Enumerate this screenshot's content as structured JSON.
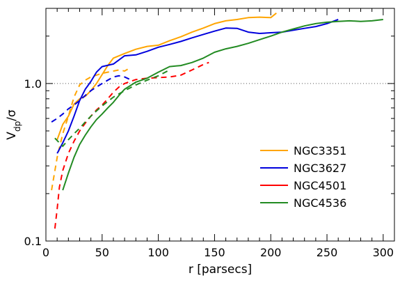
{
  "chart_data": {
    "type": "line",
    "xlabel": "r [parsecs]",
    "ylabel": {
      "main": "V",
      "sub": "dp",
      "tail": "/σ"
    },
    "xlim": [
      0,
      310
    ],
    "ylim": [
      0.1,
      3.0
    ],
    "yscale": "log",
    "x_ticks": [
      0,
      50,
      100,
      150,
      200,
      250,
      300
    ],
    "x_tick_labels": [
      "0",
      "50",
      "100",
      "150",
      "200",
      "250",
      "300"
    ],
    "y_ticks": [
      0.1,
      1.0
    ],
    "y_tick_labels": [
      "0.1",
      "1.0"
    ],
    "reference_line": {
      "y": 1.0,
      "style": "dotted",
      "color": "#555555"
    },
    "legend_placement": "lower-right",
    "series": [
      {
        "name": "NGC3351",
        "color": "#ffa500",
        "solid": [
          [
            10,
            0.44
          ],
          [
            15,
            0.55
          ],
          [
            20,
            0.62
          ],
          [
            25,
            0.74
          ],
          [
            30,
            0.8
          ],
          [
            35,
            0.83
          ],
          [
            40,
            0.9
          ],
          [
            45,
            1.0
          ],
          [
            50,
            1.14
          ],
          [
            55,
            1.3
          ],
          [
            60,
            1.45
          ],
          [
            70,
            1.55
          ],
          [
            80,
            1.65
          ],
          [
            90,
            1.72
          ],
          [
            100,
            1.75
          ],
          [
            110,
            1.87
          ],
          [
            120,
            1.98
          ],
          [
            130,
            2.12
          ],
          [
            140,
            2.25
          ],
          [
            150,
            2.4
          ],
          [
            160,
            2.5
          ],
          [
            170,
            2.55
          ],
          [
            180,
            2.62
          ],
          [
            190,
            2.64
          ],
          [
            200,
            2.62
          ],
          [
            205,
            2.8
          ]
        ],
        "dashed": [
          [
            5,
            0.21
          ],
          [
            10,
            0.34
          ],
          [
            15,
            0.48
          ],
          [
            20,
            0.62
          ],
          [
            25,
            0.82
          ],
          [
            30,
            0.98
          ],
          [
            35,
            1.05
          ],
          [
            40,
            1.1
          ],
          [
            50,
            1.16
          ],
          [
            60,
            1.2
          ],
          [
            65,
            1.22
          ],
          [
            70,
            1.2
          ],
          [
            75,
            1.26
          ]
        ]
      },
      {
        "name": "NGC3627",
        "color": "#0000dd",
        "solid": [
          [
            10,
            0.36
          ],
          [
            15,
            0.42
          ],
          [
            20,
            0.5
          ],
          [
            25,
            0.62
          ],
          [
            30,
            0.78
          ],
          [
            35,
            0.92
          ],
          [
            40,
            1.03
          ],
          [
            45,
            1.18
          ],
          [
            50,
            1.28
          ],
          [
            60,
            1.33
          ],
          [
            70,
            1.5
          ],
          [
            80,
            1.52
          ],
          [
            90,
            1.6
          ],
          [
            100,
            1.7
          ],
          [
            110,
            1.77
          ],
          [
            120,
            1.85
          ],
          [
            130,
            1.95
          ],
          [
            140,
            2.05
          ],
          [
            150,
            2.15
          ],
          [
            160,
            2.25
          ],
          [
            170,
            2.24
          ],
          [
            180,
            2.12
          ],
          [
            190,
            2.08
          ],
          [
            200,
            2.1
          ],
          [
            210,
            2.12
          ],
          [
            220,
            2.18
          ],
          [
            230,
            2.24
          ],
          [
            240,
            2.3
          ],
          [
            250,
            2.4
          ],
          [
            260,
            2.55
          ]
        ],
        "dashed": [
          [
            5,
            0.57
          ],
          [
            10,
            0.6
          ],
          [
            15,
            0.64
          ],
          [
            20,
            0.69
          ],
          [
            25,
            0.73
          ],
          [
            30,
            0.78
          ],
          [
            35,
            0.84
          ],
          [
            40,
            0.9
          ],
          [
            45,
            0.95
          ],
          [
            50,
            1.0
          ],
          [
            55,
            1.05
          ],
          [
            60,
            1.1
          ],
          [
            65,
            1.12
          ],
          [
            70,
            1.1
          ],
          [
            75,
            1.06
          ]
        ]
      },
      {
        "name": "NGC4501",
        "color": "#ff0000",
        "solid": [],
        "dashed": [
          [
            8,
            0.12
          ],
          [
            10,
            0.16
          ],
          [
            12,
            0.22
          ],
          [
            15,
            0.28
          ],
          [
            20,
            0.36
          ],
          [
            25,
            0.43
          ],
          [
            30,
            0.5
          ],
          [
            35,
            0.56
          ],
          [
            40,
            0.62
          ],
          [
            45,
            0.68
          ],
          [
            50,
            0.73
          ],
          [
            55,
            0.8
          ],
          [
            60,
            0.88
          ],
          [
            65,
            0.95
          ],
          [
            70,
            1.0
          ],
          [
            80,
            1.06
          ],
          [
            90,
            1.08
          ],
          [
            100,
            1.09
          ],
          [
            110,
            1.1
          ],
          [
            120,
            1.13
          ],
          [
            130,
            1.22
          ],
          [
            140,
            1.32
          ],
          [
            145,
            1.36
          ]
        ]
      },
      {
        "name": "NGC4536",
        "color": "#228b22",
        "solid": [
          [
            15,
            0.21
          ],
          [
            20,
            0.27
          ],
          [
            25,
            0.34
          ],
          [
            30,
            0.41
          ],
          [
            35,
            0.47
          ],
          [
            40,
            0.53
          ],
          [
            45,
            0.59
          ],
          [
            50,
            0.64
          ],
          [
            55,
            0.7
          ],
          [
            60,
            0.76
          ],
          [
            65,
            0.84
          ],
          [
            70,
            0.92
          ],
          [
            80,
            1.02
          ],
          [
            90,
            1.08
          ],
          [
            100,
            1.18
          ],
          [
            110,
            1.28
          ],
          [
            120,
            1.3
          ],
          [
            130,
            1.36
          ],
          [
            140,
            1.45
          ],
          [
            150,
            1.58
          ],
          [
            160,
            1.66
          ],
          [
            170,
            1.72
          ],
          [
            180,
            1.8
          ],
          [
            190,
            1.9
          ],
          [
            200,
            2.0
          ],
          [
            210,
            2.12
          ],
          [
            220,
            2.22
          ],
          [
            230,
            2.32
          ],
          [
            240,
            2.4
          ],
          [
            250,
            2.45
          ],
          [
            260,
            2.48
          ],
          [
            270,
            2.5
          ],
          [
            280,
            2.48
          ],
          [
            290,
            2.5
          ],
          [
            300,
            2.55
          ]
        ],
        "dashed": [
          [
            8,
            0.45
          ],
          [
            12,
            0.42
          ],
          [
            15,
            0.4
          ],
          [
            20,
            0.44
          ],
          [
            25,
            0.48
          ],
          [
            30,
            0.52
          ],
          [
            35,
            0.57
          ],
          [
            40,
            0.62
          ],
          [
            45,
            0.67
          ],
          [
            50,
            0.72
          ],
          [
            55,
            0.77
          ],
          [
            60,
            0.82
          ],
          [
            65,
            0.86
          ],
          [
            70,
            0.9
          ],
          [
            80,
            0.98
          ],
          [
            90,
            1.05
          ],
          [
            100,
            1.12
          ],
          [
            110,
            1.22
          ]
        ]
      }
    ]
  }
}
